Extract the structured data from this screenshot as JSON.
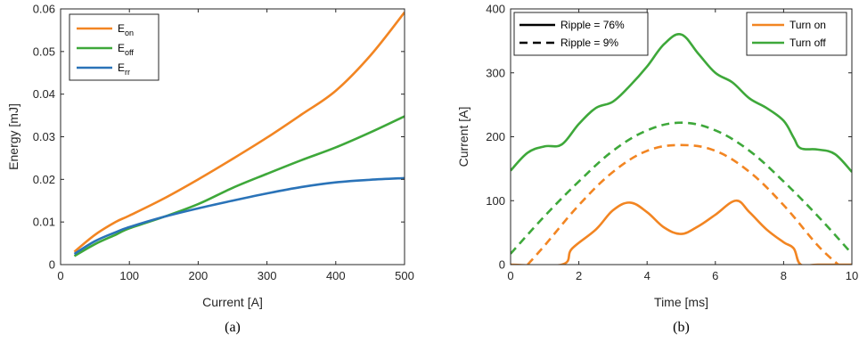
{
  "chart_data": [
    {
      "type": "line",
      "caption": "(a)",
      "xlabel": "Current [A]",
      "ylabel": "Energy [mJ]",
      "xlim": [
        0,
        500
      ],
      "ylim": [
        0,
        0.06
      ],
      "xticks": [
        0,
        100,
        200,
        300,
        400,
        500
      ],
      "xtick_labels": [
        "0",
        "100",
        "200",
        "300",
        "400",
        "500"
      ],
      "yticks": [
        0,
        0.01,
        0.02,
        0.03,
        0.04,
        0.05,
        0.06
      ],
      "ytick_labels": [
        "0",
        "0.01",
        "0.02",
        "0.03",
        "0.04",
        "0.05",
        "0.06"
      ],
      "grid": false,
      "legend_position": "top-left",
      "x": [
        20,
        50,
        80,
        100,
        150,
        200,
        250,
        300,
        350,
        400,
        450,
        500
      ],
      "series": [
        {
          "name": "E",
          "sub": "on",
          "color": "#f28522",
          "dash": "solid",
          "values": [
            0.003,
            0.007,
            0.01,
            0.0115,
            0.0155,
            0.02,
            0.0248,
            0.0298,
            0.0352,
            0.0408,
            0.049,
            0.0592
          ]
        },
        {
          "name": "E",
          "sub": "off",
          "color": "#3ea83a",
          "dash": "solid",
          "values": [
            0.002,
            0.0048,
            0.007,
            0.0085,
            0.0112,
            0.0142,
            0.018,
            0.0213,
            0.0245,
            0.0275,
            0.031,
            0.0348
          ]
        },
        {
          "name": "E",
          "sub": "rr",
          "color": "#2a73b8",
          "dash": "solid",
          "values": [
            0.0025,
            0.0055,
            0.0076,
            0.0088,
            0.0112,
            0.0132,
            0.015,
            0.0167,
            0.0182,
            0.0193,
            0.0199,
            0.0203
          ]
        }
      ]
    },
    {
      "type": "line",
      "caption": "(b)",
      "xlabel": "Time [ms]",
      "ylabel": "Current [A]",
      "xlim": [
        0,
        10
      ],
      "ylim": [
        0,
        400
      ],
      "xticks": [
        0,
        2,
        4,
        6,
        8,
        10
      ],
      "xtick_labels": [
        "0",
        "2",
        "4",
        "6",
        "8",
        "10"
      ],
      "yticks": [
        0,
        100,
        200,
        300,
        400
      ],
      "ytick_labels": [
        "0",
        "100",
        "200",
        "300",
        "400"
      ],
      "grid": false,
      "legend_position": "top-right",
      "style_legend_position": "top-left",
      "style_legend": [
        {
          "label": "Ripple = 76%",
          "dash": "solid"
        },
        {
          "label": "Ripple = 9%",
          "dash": "dashed"
        }
      ],
      "series": [
        {
          "name": "Turn on",
          "color": "#f28522",
          "dash": "solid",
          "x": [
            0,
            1.5,
            1.8,
            2.5,
            3.0,
            3.5,
            4.0,
            4.5,
            5.0,
            5.5,
            6.0,
            6.6,
            7.0,
            7.5,
            8.0,
            8.3,
            8.5,
            9.0,
            10.0
          ],
          "values": [
            0,
            0,
            25,
            55,
            85,
            97,
            82,
            58,
            48,
            60,
            78,
            100,
            82,
            55,
            35,
            25,
            0,
            0,
            0
          ]
        },
        {
          "name": "Turn off",
          "color": "#3ea83a",
          "dash": "solid",
          "x": [
            0,
            0.5,
            1.0,
            1.5,
            2.0,
            2.5,
            3.0,
            3.5,
            4.0,
            4.5,
            5.0,
            5.5,
            6.0,
            6.5,
            7.0,
            7.5,
            8.0,
            8.3,
            8.5,
            9.0,
            9.5,
            10.0
          ],
          "values": [
            147,
            175,
            185,
            188,
            220,
            245,
            255,
            280,
            310,
            345,
            360,
            330,
            300,
            285,
            260,
            245,
            225,
            198,
            182,
            180,
            173,
            145
          ]
        },
        {
          "name": "",
          "color": "#f28522",
          "dash": "dashed",
          "x": [
            0.5,
            1.0,
            2.0,
            3.0,
            4.0,
            5.0,
            6.0,
            7.0,
            8.0,
            9.0,
            9.6
          ],
          "values": [
            0,
            30,
            93,
            145,
            178,
            187,
            178,
            145,
            93,
            30,
            0
          ]
        },
        {
          "name": "",
          "color": "#3ea83a",
          "dash": "dashed",
          "x": [
            0,
            1.0,
            2.0,
            3.0,
            4.0,
            5.0,
            6.0,
            7.0,
            8.0,
            9.0,
            10.0
          ],
          "values": [
            17,
            76,
            130,
            178,
            210,
            222,
            210,
            178,
            130,
            76,
            17
          ]
        }
      ]
    }
  ]
}
